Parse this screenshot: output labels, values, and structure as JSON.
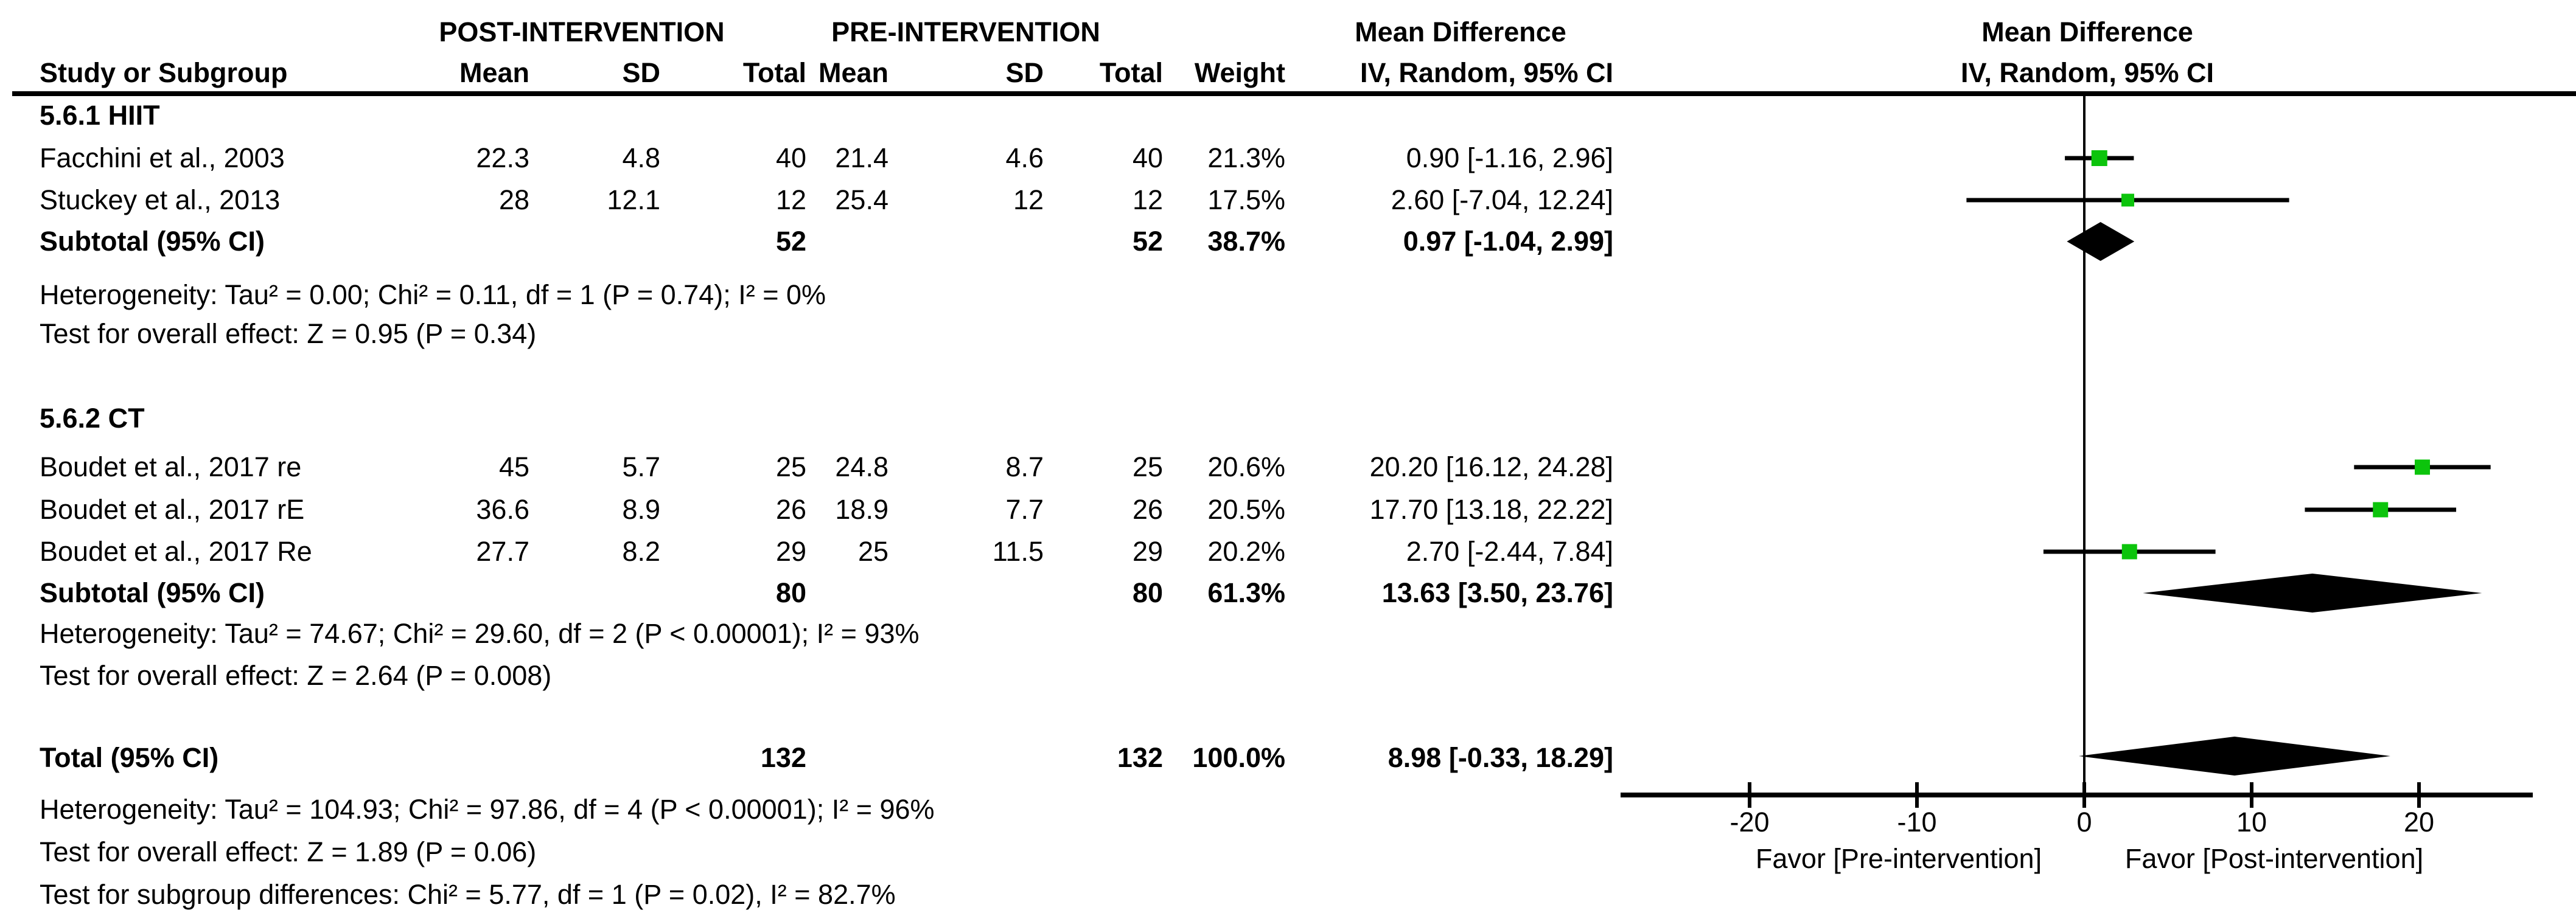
{
  "header": {
    "post_group": "POST-INTERVENTION",
    "pre_group": "PRE-INTERVENTION",
    "md_table": "Mean Difference",
    "md_plot": "Mean Difference",
    "study_col": "Study or Subgroup",
    "mean_col": "Mean",
    "sd_col": "SD",
    "total_col": "Total",
    "weight_col": "Weight",
    "iv_table": "IV, Random, 95% CI",
    "iv_plot": "IV, Random, 95% CI"
  },
  "table": {
    "section1_title": "5.6.1 HIIT",
    "section2_title": "5.6.2 CT",
    "rows": [
      {
        "study": "Facchini et al., 2003",
        "post_mean": "22.3",
        "post_sd": "4.8",
        "post_total": "40",
        "pre_mean": "21.4",
        "pre_sd": "4.6",
        "pre_total": "40",
        "weight": "21.3%",
        "ci": "0.90 [-1.16, 2.96]"
      },
      {
        "study": "Stuckey et al., 2013",
        "post_mean": "28",
        "post_sd": "12.1",
        "post_total": "12",
        "pre_mean": "25.4",
        "pre_sd": "12",
        "pre_total": "12",
        "weight": "17.5%",
        "ci": "2.60 [-7.04, 12.24]"
      },
      {
        "study": "Boudet et al., 2017 re",
        "post_mean": "45",
        "post_sd": "5.7",
        "post_total": "25",
        "pre_mean": "24.8",
        "pre_sd": "8.7",
        "pre_total": "25",
        "weight": "20.6%",
        "ci": "20.20 [16.12, 24.28]"
      },
      {
        "study": "Boudet et al., 2017 rE",
        "post_mean": "36.6",
        "post_sd": "8.9",
        "post_total": "26",
        "pre_mean": "18.9",
        "pre_sd": "7.7",
        "pre_total": "26",
        "weight": "20.5%",
        "ci": "17.70 [13.18, 22.22]"
      },
      {
        "study": "Boudet et al., 2017 Re",
        "post_mean": "27.7",
        "post_sd": "8.2",
        "post_total": "29",
        "pre_mean": "25",
        "pre_sd": "11.5",
        "pre_total": "29",
        "weight": "20.2%",
        "ci": "2.70 [-2.44, 7.84]"
      }
    ],
    "subtotal1": {
      "label": "Subtotal (95% CI)",
      "post_total": "52",
      "pre_total": "52",
      "weight": "38.7%",
      "ci": "0.97 [-1.04, 2.99]"
    },
    "het1": "Heterogeneity: Tau² = 0.00; Chi² = 0.11, df = 1 (P = 0.74); I² = 0%",
    "test1": "Test for overall effect: Z = 0.95 (P = 0.34)",
    "subtotal2": {
      "label": "Subtotal (95% CI)",
      "post_total": "80",
      "pre_total": "80",
      "weight": "61.3%",
      "ci": "13.63 [3.50, 23.76]"
    },
    "het2": "Heterogeneity: Tau² = 74.67; Chi² = 29.60, df = 2 (P < 0.00001); I² = 93%",
    "test2": "Test for overall effect: Z = 2.64 (P = 0.008)",
    "total_row": {
      "label": "Total (95% CI)",
      "post_total": "132",
      "pre_total": "132",
      "weight": "100.0%",
      "ci": "8.98 [-0.33, 18.29]"
    },
    "het3": "Heterogeneity: Tau² = 104.93; Chi² = 97.86, df = 4 (P < 0.00001); I² = 96%",
    "test3": "Test for overall effect: Z = 1.89 (P = 0.06)",
    "test4": "Test for subgroup differences: Chi² = 5.77, df = 1 (P = 0.02), I² = 82.7%"
  },
  "chart_data": {
    "type": "forest",
    "effect_measure": "Mean Difference, IV, Random, 95% CI",
    "x_axis": {
      "ticks": [
        -20,
        -10,
        0,
        10,
        20
      ],
      "range": [
        -27.7,
        26.8
      ],
      "label_left": "Favor [Pre-intervention]",
      "label_right": "Favor [Post-intervention]"
    },
    "studies": [
      {
        "name": "Facchini et al., 2003",
        "md": 0.9,
        "ci_low": -1.16,
        "ci_high": 2.96,
        "weight_pct": 21.3
      },
      {
        "name": "Stuckey et al., 2013",
        "md": 2.6,
        "ci_low": -7.04,
        "ci_high": 12.24,
        "weight_pct": 17.5
      },
      {
        "name": "Boudet et al., 2017 re",
        "md": 20.2,
        "ci_low": 16.12,
        "ci_high": 24.28,
        "weight_pct": 20.6
      },
      {
        "name": "Boudet et al., 2017 rE",
        "md": 17.7,
        "ci_low": 13.18,
        "ci_high": 22.22,
        "weight_pct": 20.5
      },
      {
        "name": "Boudet et al., 2017 Re",
        "md": 2.7,
        "ci_low": -2.44,
        "ci_high": 7.84,
        "weight_pct": 20.2
      }
    ],
    "diamonds": [
      {
        "name": "Subtotal 5.6.1 HIIT",
        "md": 0.97,
        "ci_low": -1.04,
        "ci_high": 2.99
      },
      {
        "name": "Subtotal 5.6.2 CT",
        "md": 13.63,
        "ci_low": 3.5,
        "ci_high": 23.76
      },
      {
        "name": "Total",
        "md": 8.98,
        "ci_low": -0.33,
        "ci_high": 18.29
      }
    ],
    "marker_color": "#0cc40c",
    "line_color": "#000000"
  }
}
